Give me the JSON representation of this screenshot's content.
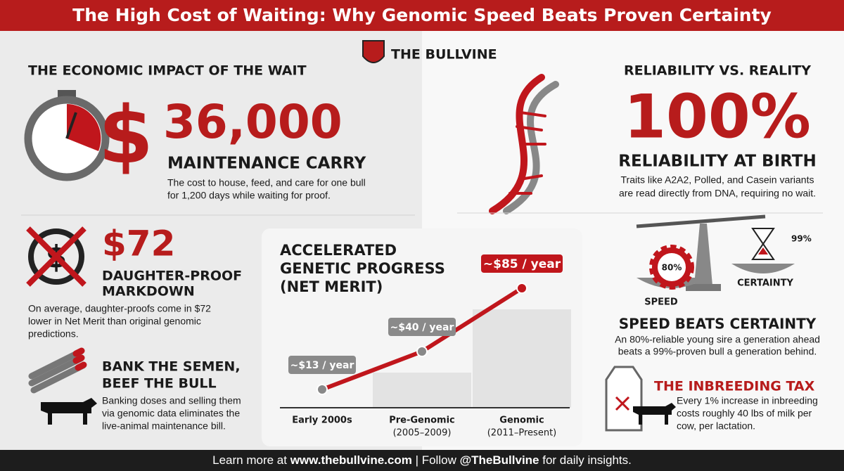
{
  "header": {
    "title": "The High Cost of Waiting: Why Genomic Speed Beats Proven Certainty",
    "logo": "THE BULLVINE"
  },
  "economic_impact": {
    "heading": "THE ECONOMIC IMPACT OF THE WAIT",
    "currency": "$",
    "amount": "36,000",
    "title": "MAINTENANCE CARRY",
    "description_lines": [
      "The cost to house, feed, and care for one bull",
      "for 1,200 days while waiting for proof."
    ]
  },
  "markdown": {
    "amount": "$72",
    "title_lines": [
      "DAUGHTER-PROOF",
      "MARKDOWN"
    ],
    "description_lines": [
      "On average, daughter-proofs come in $72",
      "lower in Net Merit than original genomic",
      "predictions."
    ]
  },
  "semen": {
    "title_lines": [
      "BANK THE SEMEN,",
      "BEEF THE BULL"
    ],
    "description_lines": [
      "Banking doses and selling them",
      "via genomic data eliminates the",
      "live-animal maintenance bill."
    ]
  },
  "chart_data": {
    "type": "line",
    "title_lines": [
      "ACCELERATED",
      "GENETIC PROGRESS",
      "(NET MERIT)"
    ],
    "categories": [
      "Early 2000s",
      "Pre-Genomic",
      "Genomic"
    ],
    "category_notes": [
      null,
      "(2005–2009)",
      "(2011–Present)"
    ],
    "values": [
      13,
      40,
      85
    ],
    "value_labels": [
      "~$13 / year",
      "~$40 / year",
      "~$85 / year"
    ],
    "color": "#c0161c"
  },
  "reliability": {
    "heading": "RELIABILITY VS. REALITY",
    "figure": "100%",
    "title": "RELIABILITY AT BIRTH",
    "description_lines": [
      "Traits like A2A2, Polled, and Casein variants",
      "are read directly from DNA, requiring no wait."
    ]
  },
  "speed": {
    "speed_pct": "80%",
    "certainty_pct": "99%",
    "speed_label": "SPEED",
    "certainty_label": "CERTAINTY",
    "title": "SPEED BEATS CERTAINTY",
    "description_lines": [
      "An 80%-reliable young sire a generation ahead",
      "beats a 99%-proven bull a generation behind."
    ]
  },
  "inbreeding": {
    "title": "THE INBREEDING TAX",
    "description_lines": [
      "Every 1% increase in inbreeding",
      "costs roughly 40 lbs of milk per",
      "cow, per lactation."
    ]
  },
  "footer": {
    "parts": [
      "Learn more at ",
      "www.thebullvine.com",
      " | Follow ",
      "@TheBullvine",
      " for daily insights."
    ]
  }
}
